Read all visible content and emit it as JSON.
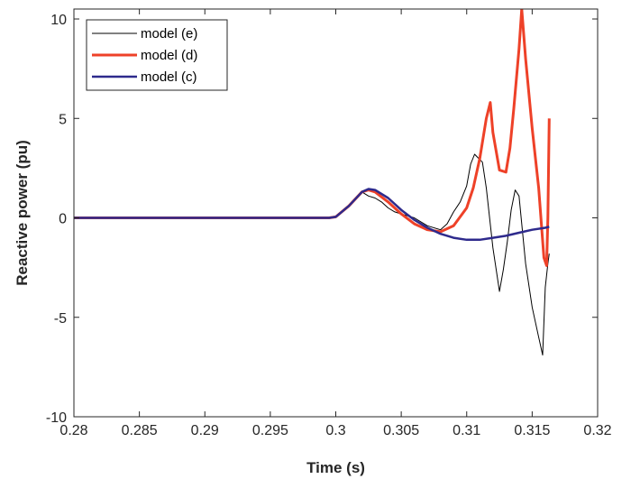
{
  "chart_data": {
    "type": "line",
    "title": "",
    "xlabel": "Time (s)",
    "ylabel": "Reactive power (pu)",
    "xlim": [
      0.28,
      0.32
    ],
    "ylim": [
      -10,
      10.5
    ],
    "xticks": [
      0.28,
      0.285,
      0.29,
      0.295,
      0.3,
      0.305,
      0.31,
      0.315,
      0.32
    ],
    "xtick_labels": [
      "0.28",
      "0.285",
      "0.29",
      "0.295",
      "0.3",
      "0.305",
      "0.31",
      "0.315",
      "0.32"
    ],
    "yticks": [
      -10,
      -5,
      0,
      5,
      10
    ],
    "ytick_labels": [
      "-10",
      "-5",
      "0",
      "5",
      "10"
    ],
    "grid": false,
    "legend_position": "top-left",
    "series": [
      {
        "name": "model (e)",
        "color": "#000000",
        "x": [
          0.28,
          0.285,
          0.29,
          0.295,
          0.2995,
          0.3,
          0.3008,
          0.3015,
          0.302,
          0.3025,
          0.303,
          0.3035,
          0.304,
          0.3045,
          0.305,
          0.306,
          0.307,
          0.308,
          0.3085,
          0.309,
          0.3095,
          0.31,
          0.3103,
          0.3106,
          0.3109,
          0.3112,
          0.3115,
          0.312,
          0.3125,
          0.3128,
          0.3131,
          0.3134,
          0.3137,
          0.314,
          0.3145,
          0.315,
          0.3155,
          0.3158,
          0.316,
          0.3162,
          0.3163
        ],
        "y": [
          0,
          0,
          0,
          0,
          0,
          0.05,
          0.5,
          1.0,
          1.3,
          1.1,
          1.0,
          0.8,
          0.5,
          0.3,
          0.2,
          0.0,
          -0.4,
          -0.6,
          -0.3,
          0.3,
          0.8,
          1.6,
          2.7,
          3.2,
          3.0,
          2.8,
          1.5,
          -1.5,
          -3.7,
          -2.6,
          -1.2,
          0.4,
          1.4,
          1.1,
          -2.3,
          -4.5,
          -6.0,
          -6.9,
          -3.5,
          -2.3,
          -1.8
        ]
      },
      {
        "name": "model (d)",
        "color": "#ee4128",
        "x": [
          0.28,
          0.285,
          0.29,
          0.295,
          0.2995,
          0.3,
          0.301,
          0.302,
          0.3025,
          0.303,
          0.304,
          0.305,
          0.306,
          0.307,
          0.308,
          0.309,
          0.31,
          0.3105,
          0.311,
          0.3115,
          0.3118,
          0.312,
          0.3125,
          0.313,
          0.3133,
          0.3136,
          0.314,
          0.3142,
          0.3145,
          0.315,
          0.3155,
          0.3159,
          0.3161,
          0.3162,
          0.3163
        ],
        "y": [
          0,
          0,
          0,
          0,
          0,
          0.05,
          0.6,
          1.3,
          1.4,
          1.3,
          0.8,
          0.2,
          -0.3,
          -0.6,
          -0.7,
          -0.4,
          0.5,
          1.5,
          3.0,
          5.0,
          5.8,
          4.3,
          2.4,
          2.3,
          3.5,
          5.5,
          8.5,
          10.5,
          8.0,
          4.5,
          1.5,
          -2.0,
          -2.4,
          0.0,
          5.0
        ]
      },
      {
        "name": "model (c)",
        "color": "#2e2a8c",
        "x": [
          0.28,
          0.285,
          0.29,
          0.295,
          0.2995,
          0.3,
          0.301,
          0.302,
          0.3025,
          0.303,
          0.304,
          0.305,
          0.306,
          0.307,
          0.308,
          0.309,
          0.31,
          0.311,
          0.312,
          0.313,
          0.314,
          0.315,
          0.316,
          0.3163
        ],
        "y": [
          0,
          0,
          0,
          0,
          0,
          0.05,
          0.6,
          1.3,
          1.45,
          1.4,
          1.0,
          0.4,
          -0.1,
          -0.5,
          -0.8,
          -1.0,
          -1.1,
          -1.1,
          -1.0,
          -0.9,
          -0.75,
          -0.6,
          -0.5,
          -0.45
        ]
      }
    ]
  }
}
